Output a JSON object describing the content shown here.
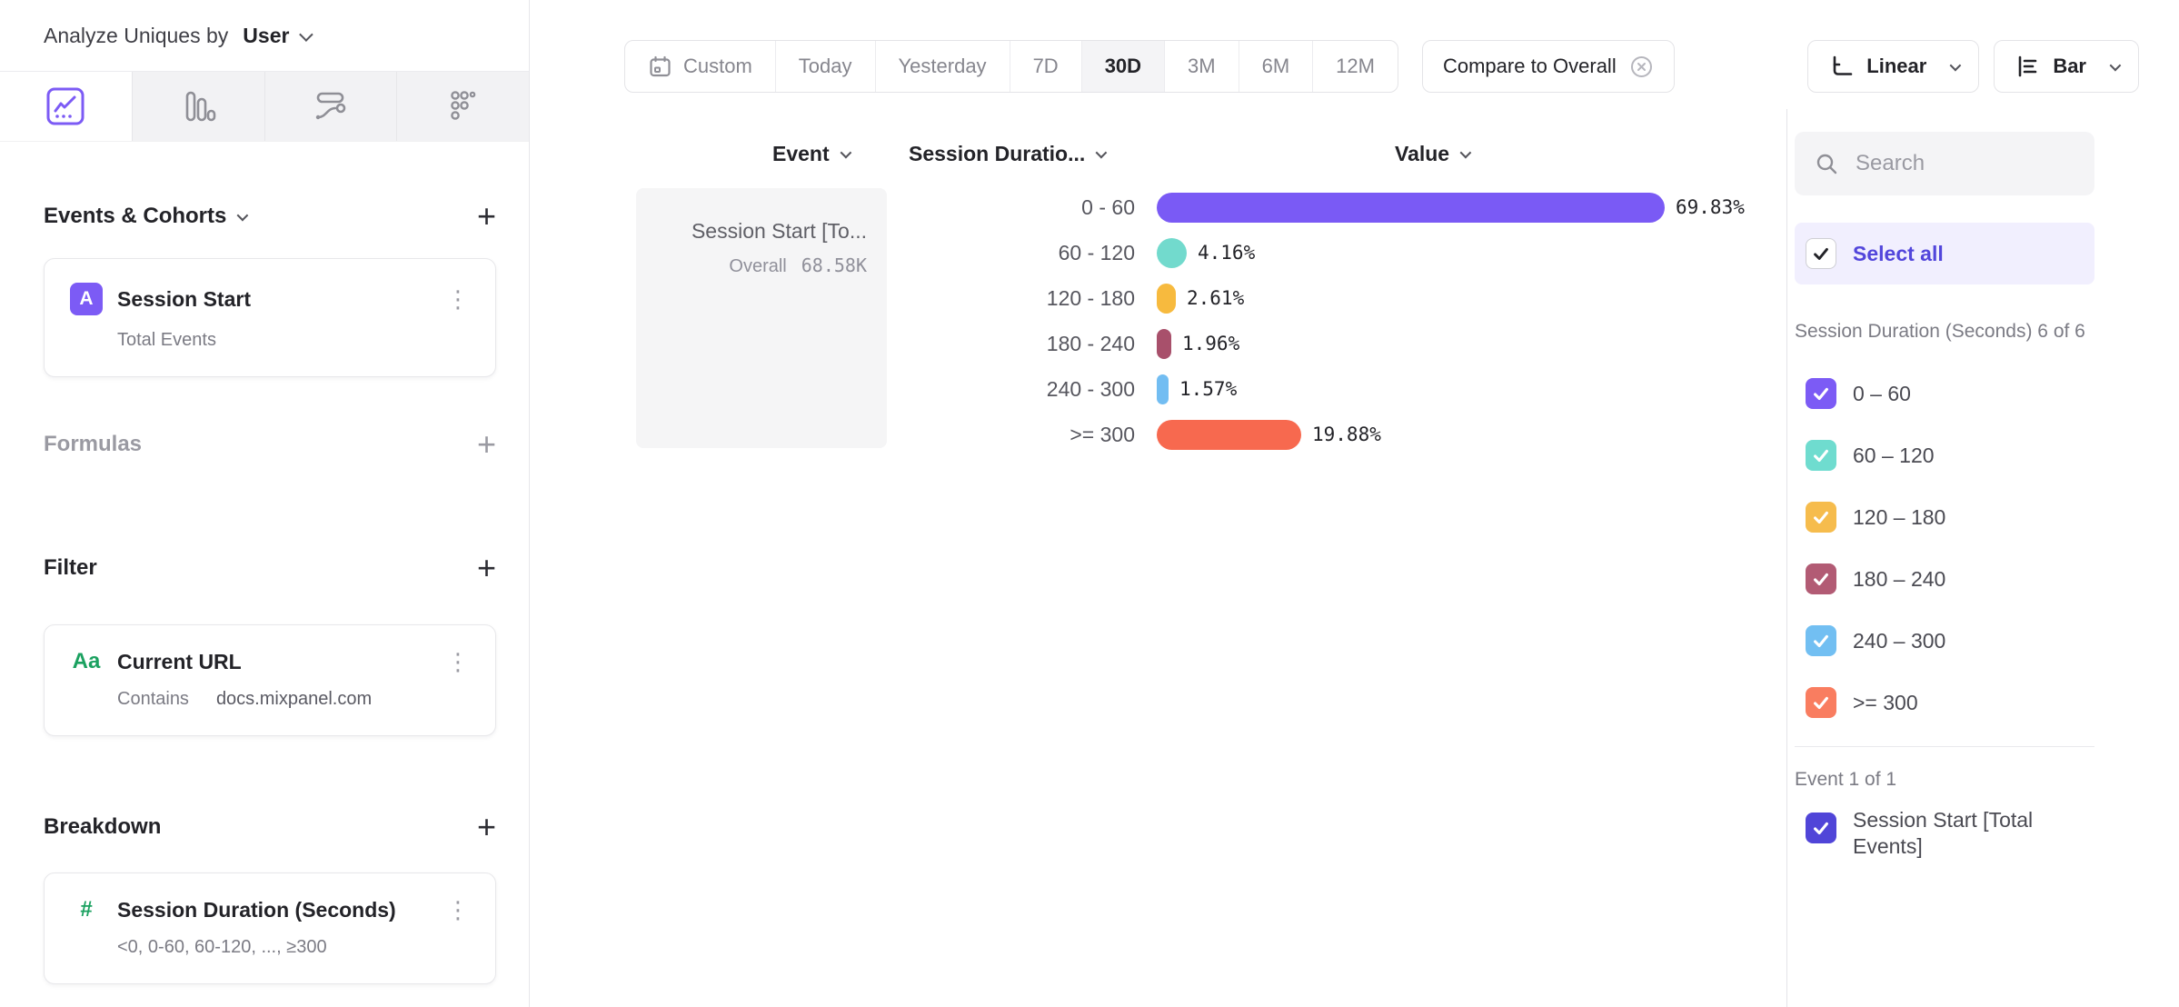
{
  "icons": {
    "plus": "+",
    "kebab": "⋮",
    "chevron_down": "⌄",
    "search": "⌕",
    "calendar": "▦",
    "close_circle": "⊗",
    "checkmark": "✓"
  },
  "sidebar": {
    "analyze_label": "Analyze Uniques by",
    "analyze_value": "User",
    "events_section": {
      "title": "Events & Cohorts"
    },
    "event_card": {
      "badge": "A",
      "title": "Session Start",
      "subtitle": "Total Events"
    },
    "formulas_section": {
      "title": "Formulas"
    },
    "filter_section": {
      "title": "Filter"
    },
    "filter_card": {
      "badge": "Aa",
      "title": "Current URL",
      "operator": "Contains",
      "value": "docs.mixpanel.com"
    },
    "breakdown_section": {
      "title": "Breakdown"
    },
    "breakdown_card": {
      "badge": "#",
      "title": "Session Duration (Seconds)",
      "subtitle": "<0, 0-60, 60-120, ..., ≥300"
    }
  },
  "toolbar": {
    "date_ranges": [
      "Custom",
      "Today",
      "Yesterday",
      "7D",
      "30D",
      "3M",
      "6M",
      "12M"
    ],
    "active_range": "30D",
    "compare_label": "Compare to Overall",
    "scale_label": "Linear",
    "chart_type_label": "Bar"
  },
  "main": {
    "columns": {
      "event": "Event",
      "breakdown": "Session Duratio...",
      "value": "Value"
    },
    "event_card": {
      "title": "Session Start [To...",
      "overall_label": "Overall",
      "overall_value": "68.58K"
    }
  },
  "chart_data": {
    "type": "bar",
    "orientation": "horizontal",
    "categories": [
      "0 - 60",
      "60 - 120",
      "120 - 180",
      "180 - 240",
      "240 - 300",
      ">= 300"
    ],
    "values": [
      69.83,
      4.16,
      2.61,
      1.96,
      1.57,
      19.88
    ],
    "value_labels": [
      "69.83%",
      "4.16%",
      "2.61%",
      "1.96%",
      "1.57%",
      "19.88%"
    ],
    "colors": [
      "#7A5AF5",
      "#72DACD",
      "#F7BA3E",
      "#A8506B",
      "#72BDF2",
      "#F7694F"
    ],
    "unit": "%",
    "xlim": [
      0,
      100
    ],
    "series_overall_value": "68.58K"
  },
  "panel": {
    "search_placeholder": "Search",
    "select_all_label": "Select all",
    "group_breakdown_label": "Session Duration (Seconds) 6 of 6",
    "items": [
      {
        "label": "0 – 60",
        "color": "#7C5BF5"
      },
      {
        "label": "60 – 120",
        "color": "#6FDCCF"
      },
      {
        "label": "120 – 180",
        "color": "#F6BC4D"
      },
      {
        "label": "180 – 240",
        "color": "#B25B74"
      },
      {
        "label": "240 – 300",
        "color": "#72BFF2"
      },
      {
        "label": ">= 300",
        "color": "#F97D60"
      }
    ],
    "group_event_label": "Event 1 of 1",
    "event_item": {
      "label": "Session Start [Total Events]",
      "color": "#5045D8"
    }
  },
  "colors": {
    "accent": "#7C5BF5",
    "select_all_bg": "#F1EFFE",
    "select_all_text": "#5246DB"
  }
}
